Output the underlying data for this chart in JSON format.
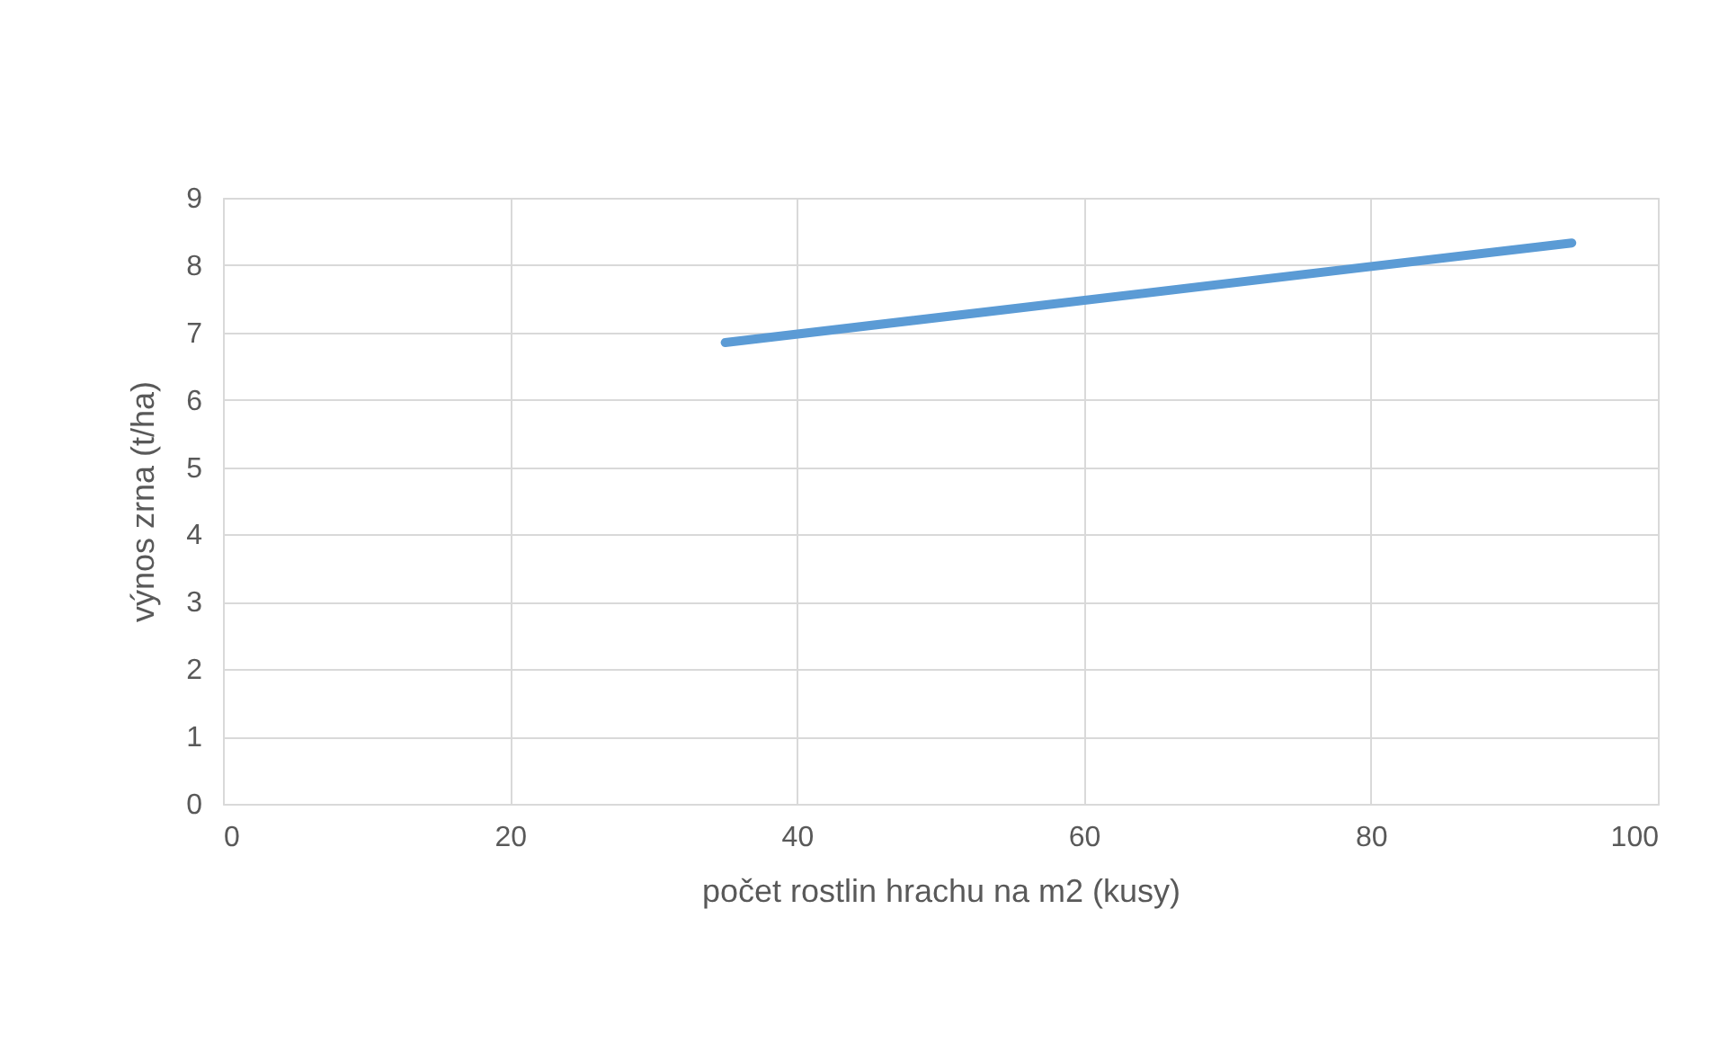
{
  "chart_data": {
    "type": "line",
    "xlabel": "počet rostlin hrachu na m2 (kusy)",
    "ylabel": "výnos zrna (t/ha)",
    "x": [
      35,
      94
    ],
    "series": [
      {
        "color": "#5b9bd5",
        "values": [
          6.85,
          8.33
        ]
      }
    ],
    "xlim": [
      0,
      100
    ],
    "xticks": [
      0,
      20,
      40,
      60,
      80,
      100
    ],
    "ylim": [
      0,
      9
    ],
    "yticks": [
      0,
      1,
      2,
      3,
      4,
      5,
      6,
      7,
      8,
      9
    ],
    "grid": true,
    "marker": "none",
    "line_style": "solid"
  }
}
